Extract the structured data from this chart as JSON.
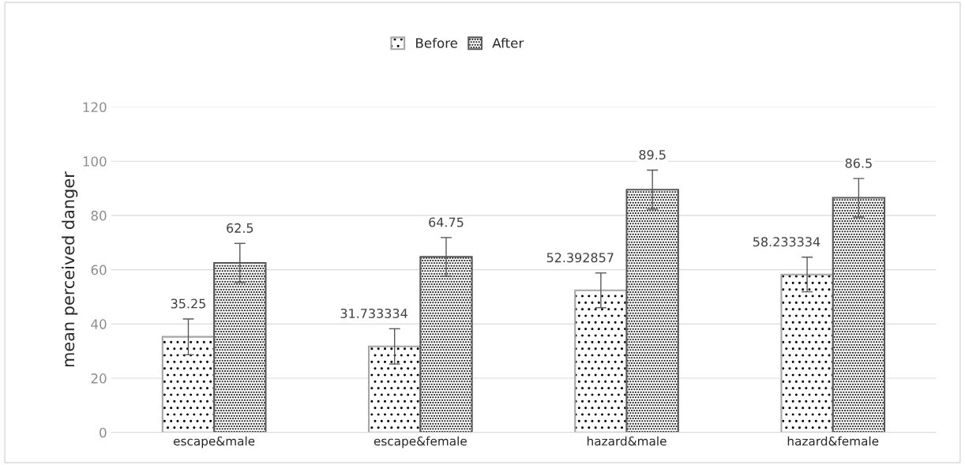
{
  "chart_data": {
    "type": "bar",
    "ylabel": "mean perceived danger",
    "categories": [
      "escape&male",
      "escape&female",
      "hazard&male",
      "hazard&female"
    ],
    "series": [
      {
        "name": "Before",
        "color": "#a6a6a6",
        "values": [
          35.25,
          31.733334,
          52.392857,
          58.233334
        ],
        "errors": [
          6.6,
          6.5,
          6.4,
          6.4
        ]
      },
      {
        "name": "After",
        "color": "#595959",
        "values": [
          62.5,
          64.75,
          89.5,
          86.5
        ],
        "errors": [
          7.2,
          7.1,
          7.2,
          7.1
        ]
      }
    ],
    "ylim": [
      0,
      120
    ],
    "yticks": [
      0,
      20,
      40,
      60,
      80,
      100,
      120
    ],
    "grid": "y",
    "legend": "top",
    "data_labels": true
  }
}
